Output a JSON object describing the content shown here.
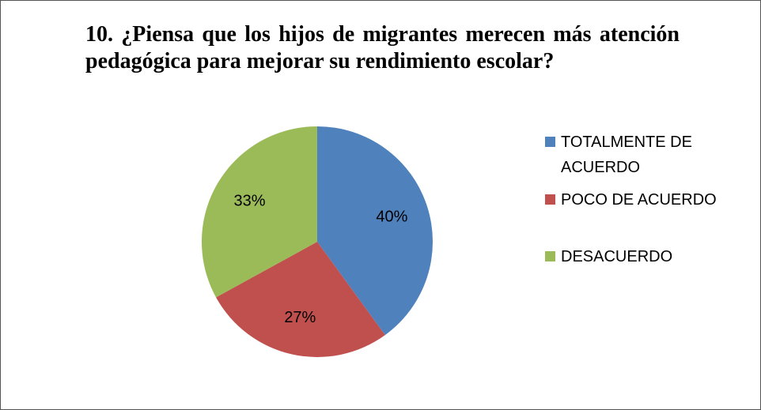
{
  "chart_data": {
    "type": "pie",
    "title": "10. ¿Piensa que los hijos de migrantes merecen más atención pedagógica para mejorar su rendimiento escolar?",
    "categories": [
      "TOTALMENTE DE ACUERDO",
      "POCO DE ACUERDO",
      "DESACUERDO"
    ],
    "values": [
      40,
      27,
      33
    ],
    "value_labels": [
      "40%",
      "27%",
      "33%"
    ],
    "colors": [
      "#4f81bd",
      "#c0504d",
      "#9bbb59"
    ],
    "legend": "right"
  }
}
